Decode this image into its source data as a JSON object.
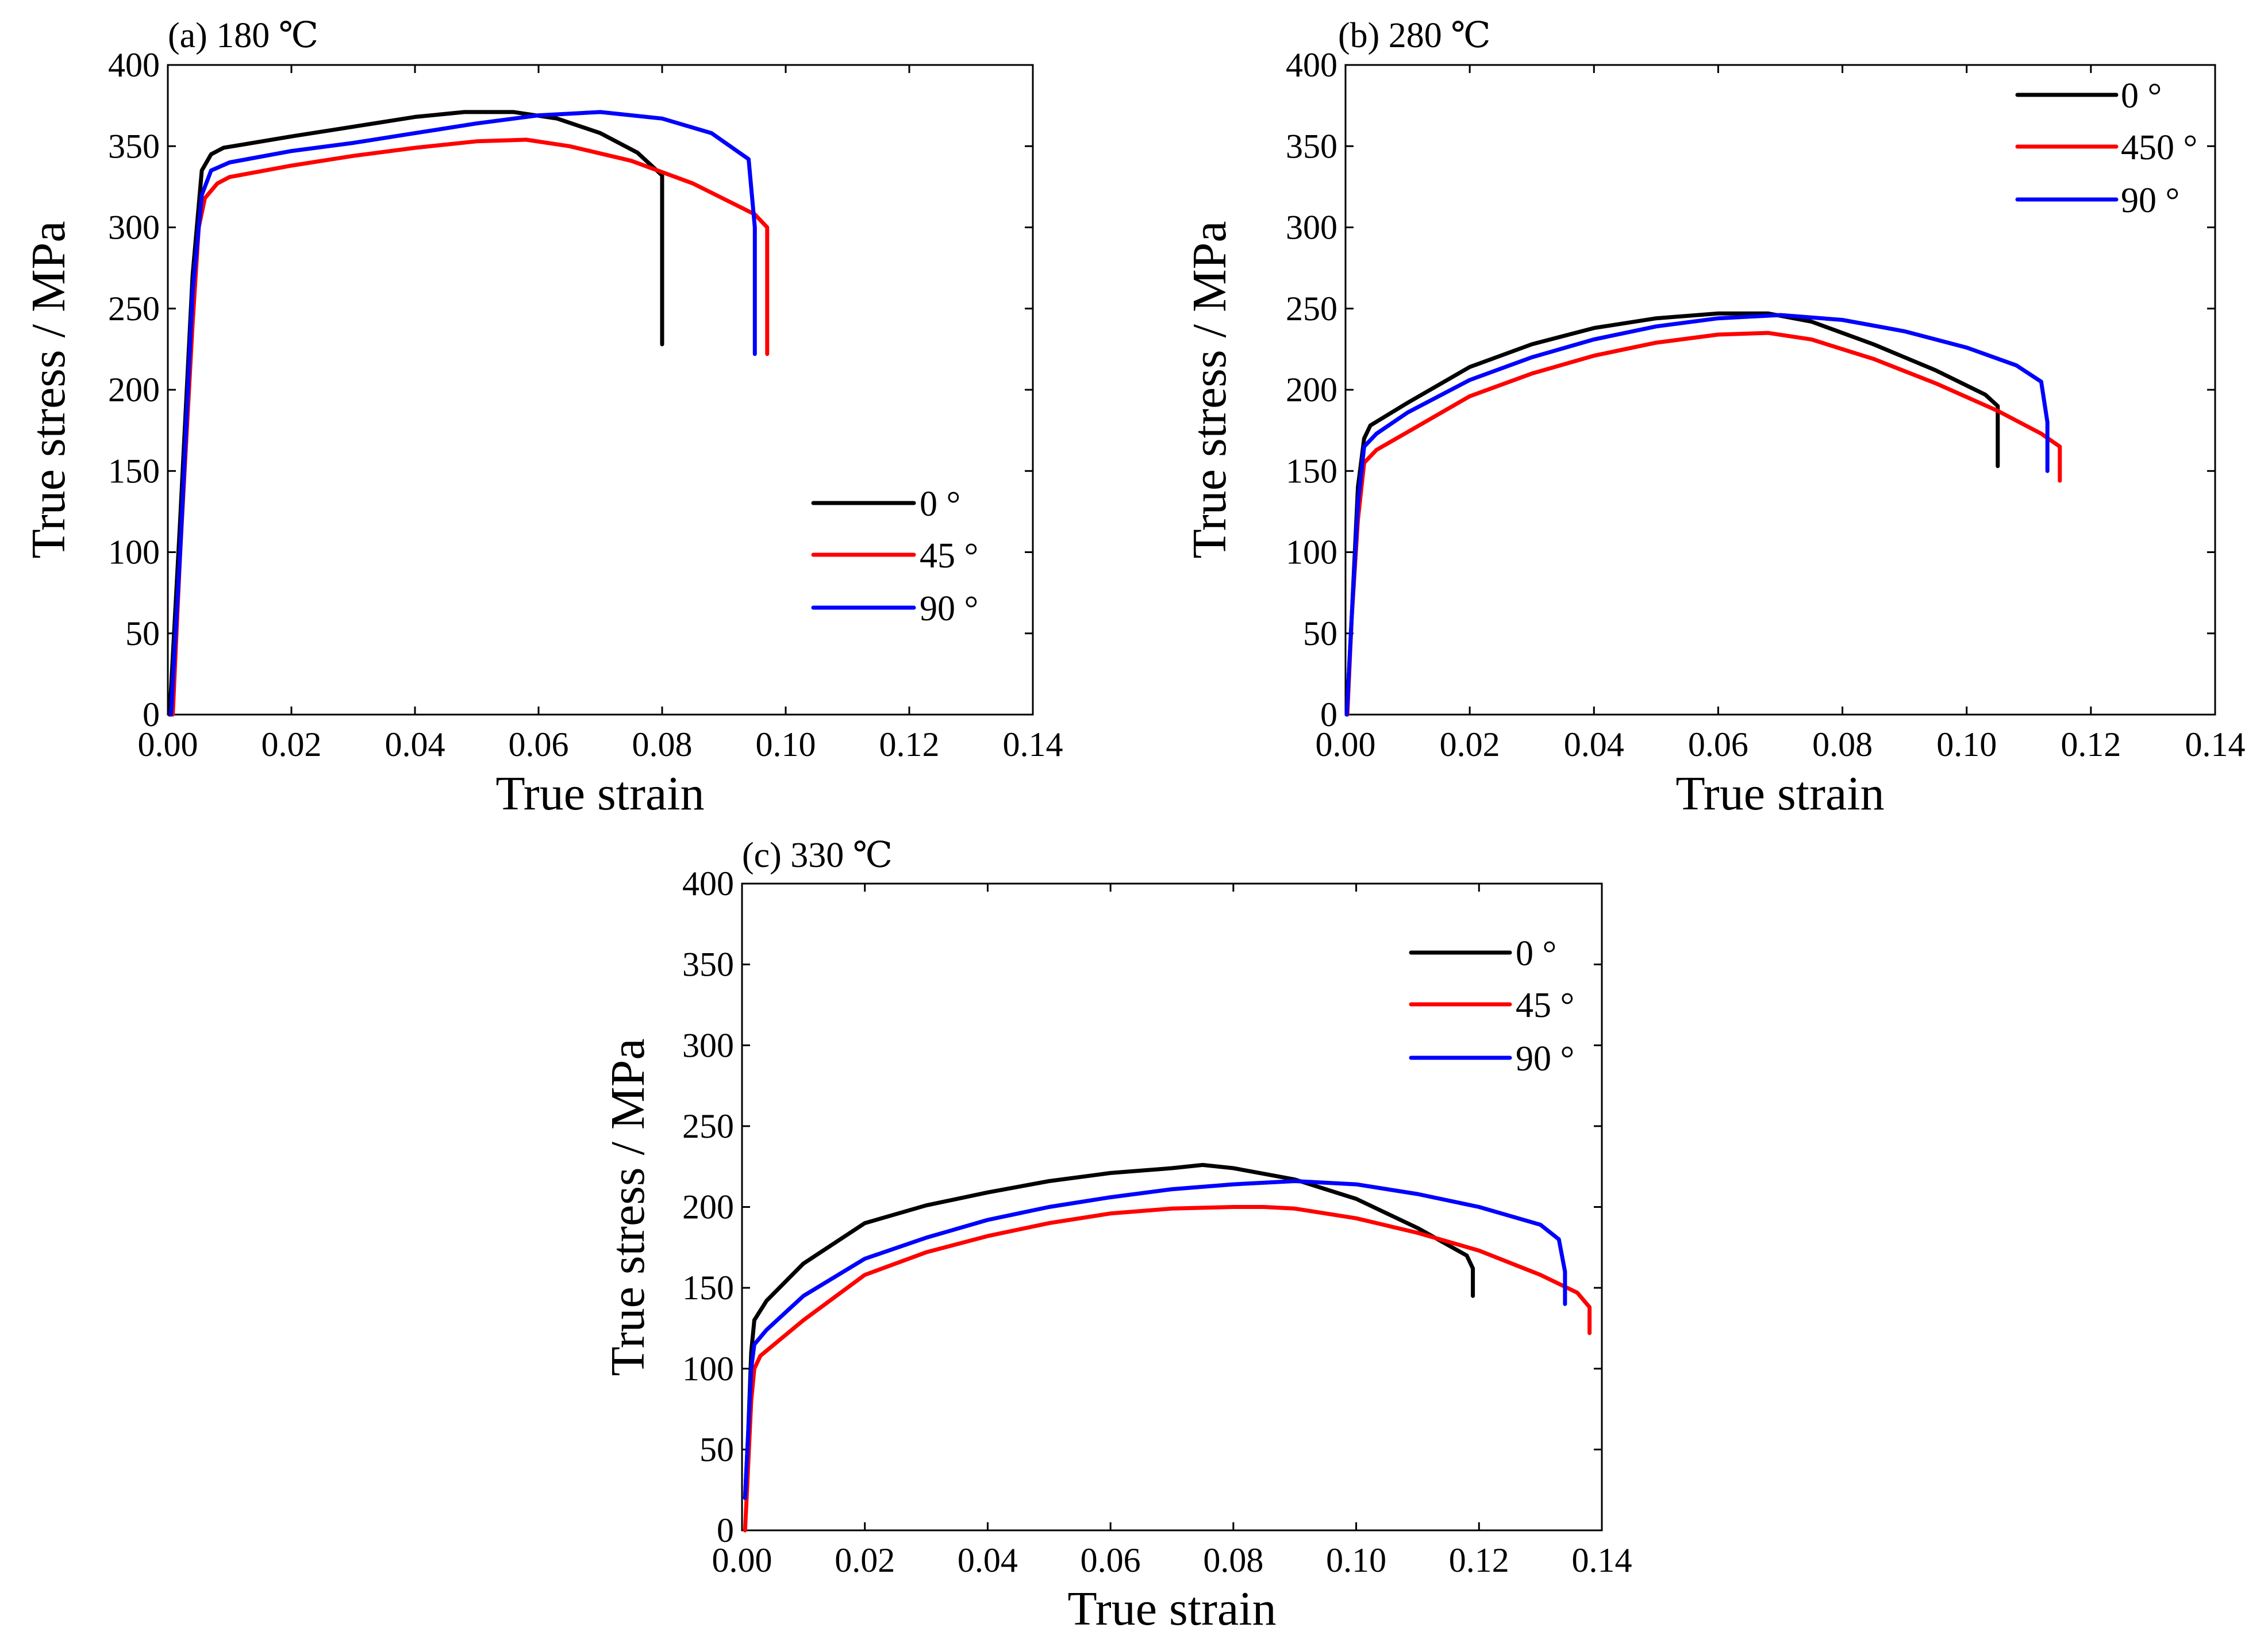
{
  "chart_data": [
    {
      "type": "line",
      "title": "(a) 180  ℃",
      "xlabel": "True strain",
      "ylabel": "True stress / MPa",
      "xlim": [
        0,
        0.14
      ],
      "ylim": [
        0,
        400
      ],
      "xticks": [
        "0.00",
        "0.02",
        "0.04",
        "0.06",
        "0.08",
        "0.10",
        "0.12",
        "0.14"
      ],
      "yticks": [
        "0",
        "50",
        "100",
        "150",
        "200",
        "250",
        "300",
        "350",
        "400"
      ],
      "legend_position": "center-right",
      "series": [
        {
          "name": "0 °",
          "color": "#000000",
          "points": [
            [
              0.0003,
              0
            ],
            [
              0.002,
              120
            ],
            [
              0.004,
              270
            ],
            [
              0.0055,
              335
            ],
            [
              0.007,
              345
            ],
            [
              0.009,
              349
            ],
            [
              0.02,
              356
            ],
            [
              0.03,
              362
            ],
            [
              0.04,
              368
            ],
            [
              0.048,
              371
            ],
            [
              0.056,
              371
            ],
            [
              0.063,
              367
            ],
            [
              0.07,
              358
            ],
            [
              0.076,
              346
            ],
            [
              0.08,
              332
            ],
            [
              0.08,
              228
            ]
          ]
        },
        {
          "name": "45 °",
          "color": "#ff0000",
          "points": [
            [
              0.0008,
              0
            ],
            [
              0.002,
              100
            ],
            [
              0.004,
              240
            ],
            [
              0.005,
              300
            ],
            [
              0.006,
              318
            ],
            [
              0.008,
              327
            ],
            [
              0.01,
              331
            ],
            [
              0.02,
              338
            ],
            [
              0.03,
              344
            ],
            [
              0.04,
              349
            ],
            [
              0.05,
              353
            ],
            [
              0.058,
              354
            ],
            [
              0.065,
              350
            ],
            [
              0.075,
              341
            ],
            [
              0.085,
              327
            ],
            [
              0.095,
              308
            ],
            [
              0.097,
              300
            ],
            [
              0.097,
              222
            ]
          ]
        },
        {
          "name": "90 °",
          "color": "#0000ff",
          "points": [
            [
              0.0005,
              0
            ],
            [
              0.002,
              100
            ],
            [
              0.004,
              260
            ],
            [
              0.0055,
              320
            ],
            [
              0.007,
              335
            ],
            [
              0.01,
              340
            ],
            [
              0.02,
              347
            ],
            [
              0.03,
              352
            ],
            [
              0.04,
              358
            ],
            [
              0.05,
              364
            ],
            [
              0.06,
              369
            ],
            [
              0.07,
              371
            ],
            [
              0.08,
              367
            ],
            [
              0.088,
              358
            ],
            [
              0.094,
              342
            ],
            [
              0.095,
              300
            ],
            [
              0.095,
              222
            ]
          ]
        }
      ]
    },
    {
      "type": "line",
      "title": "(b) 280 ℃",
      "xlabel": "True strain",
      "ylabel": "True stress / MPa",
      "xlim": [
        0,
        0.14
      ],
      "ylim": [
        0,
        400
      ],
      "xticks": [
        "0.00",
        "0.02",
        "0.04",
        "0.06",
        "0.08",
        "0.10",
        "0.12",
        "0.14"
      ],
      "yticks": [
        "0",
        "50",
        "100",
        "150",
        "200",
        "250",
        "300",
        "350",
        "400"
      ],
      "legend_position": "top-right",
      "series": [
        {
          "name": "0 °",
          "color": "#000000",
          "points": [
            [
              0.0002,
              0
            ],
            [
              0.001,
              60
            ],
            [
              0.002,
              140
            ],
            [
              0.003,
              170
            ],
            [
              0.004,
              178
            ],
            [
              0.01,
              192
            ],
            [
              0.02,
              214
            ],
            [
              0.03,
              228
            ],
            [
              0.04,
              238
            ],
            [
              0.05,
              244
            ],
            [
              0.06,
              247
            ],
            [
              0.068,
              247
            ],
            [
              0.075,
              242
            ],
            [
              0.085,
              228
            ],
            [
              0.095,
              212
            ],
            [
              0.103,
              197
            ],
            [
              0.105,
              190
            ],
            [
              0.105,
              153
            ]
          ]
        },
        {
          "name": "450 °",
          "color": "#ff0000",
          "points": [
            [
              0.0003,
              0
            ],
            [
              0.001,
              60
            ],
            [
              0.002,
              120
            ],
            [
              0.003,
              155
            ],
            [
              0.005,
              163
            ],
            [
              0.01,
              174
            ],
            [
              0.02,
              196
            ],
            [
              0.03,
              210
            ],
            [
              0.04,
              221
            ],
            [
              0.05,
              229
            ],
            [
              0.06,
              234
            ],
            [
              0.068,
              235
            ],
            [
              0.075,
              231
            ],
            [
              0.085,
              219
            ],
            [
              0.095,
              204
            ],
            [
              0.105,
              187
            ],
            [
              0.112,
              173
            ],
            [
              0.115,
              165
            ],
            [
              0.115,
              144
            ]
          ]
        },
        {
          "name": "90 °",
          "color": "#0000ff",
          "points": [
            [
              0.0002,
              0
            ],
            [
              0.001,
              60
            ],
            [
              0.002,
              130
            ],
            [
              0.003,
              165
            ],
            [
              0.005,
              173
            ],
            [
              0.01,
              186
            ],
            [
              0.02,
              206
            ],
            [
              0.03,
              220
            ],
            [
              0.04,
              231
            ],
            [
              0.05,
              239
            ],
            [
              0.06,
              244
            ],
            [
              0.07,
              246
            ],
            [
              0.08,
              243
            ],
            [
              0.09,
              236
            ],
            [
              0.1,
              226
            ],
            [
              0.108,
              215
            ],
            [
              0.112,
              205
            ],
            [
              0.113,
              180
            ],
            [
              0.113,
              150
            ]
          ]
        }
      ]
    },
    {
      "type": "line",
      "title": "(c) 330  ℃",
      "xlabel": "True strain",
      "ylabel": "True stress / MPa",
      "xlim": [
        0,
        0.14
      ],
      "ylim": [
        0,
        400
      ],
      "xticks": [
        "0.00",
        "0.02",
        "0.04",
        "0.06",
        "0.08",
        "0.10",
        "0.12",
        "0.14"
      ],
      "yticks": [
        "0",
        "50",
        "100",
        "150",
        "200",
        "250",
        "300",
        "350",
        "400"
      ],
      "legend_position": "top-right",
      "series": [
        {
          "name": "0 °",
          "color": "#000000",
          "points": [
            [
              0.0005,
              20
            ],
            [
              0.001,
              60
            ],
            [
              0.0015,
              110
            ],
            [
              0.002,
              130
            ],
            [
              0.004,
              142
            ],
            [
              0.01,
              165
            ],
            [
              0.02,
              190
            ],
            [
              0.03,
              201
            ],
            [
              0.04,
              209
            ],
            [
              0.05,
              216
            ],
            [
              0.06,
              221
            ],
            [
              0.07,
              224
            ],
            [
              0.075,
              226
            ],
            [
              0.08,
              224
            ],
            [
              0.09,
              217
            ],
            [
              0.1,
              205
            ],
            [
              0.11,
              187
            ],
            [
              0.118,
              170
            ],
            [
              0.119,
              162
            ],
            [
              0.119,
              145
            ]
          ]
        },
        {
          "name": "45 °",
          "color": "#ff0000",
          "points": [
            [
              0.0005,
              0
            ],
            [
              0.001,
              40
            ],
            [
              0.0015,
              80
            ],
            [
              0.002,
              100
            ],
            [
              0.003,
              108
            ],
            [
              0.01,
              130
            ],
            [
              0.02,
              158
            ],
            [
              0.03,
              172
            ],
            [
              0.04,
              182
            ],
            [
              0.05,
              190
            ],
            [
              0.06,
              196
            ],
            [
              0.07,
              199
            ],
            [
              0.08,
              200
            ],
            [
              0.085,
              200
            ],
            [
              0.09,
              199
            ],
            [
              0.1,
              193
            ],
            [
              0.11,
              184
            ],
            [
              0.12,
              173
            ],
            [
              0.13,
              158
            ],
            [
              0.136,
              147
            ],
            [
              0.138,
              138
            ],
            [
              0.138,
              122
            ]
          ]
        },
        {
          "name": "90 °",
          "color": "#0000ff",
          "points": [
            [
              0.0005,
              20
            ],
            [
              0.001,
              60
            ],
            [
              0.0015,
              100
            ],
            [
              0.002,
              115
            ],
            [
              0.004,
              124
            ],
            [
              0.01,
              145
            ],
            [
              0.02,
              168
            ],
            [
              0.03,
              181
            ],
            [
              0.04,
              192
            ],
            [
              0.05,
              200
            ],
            [
              0.06,
              206
            ],
            [
              0.07,
              211
            ],
            [
              0.08,
              214
            ],
            [
              0.09,
              216
            ],
            [
              0.1,
              214
            ],
            [
              0.11,
              208
            ],
            [
              0.12,
              200
            ],
            [
              0.13,
              189
            ],
            [
              0.133,
              180
            ],
            [
              0.134,
              160
            ],
            [
              0.134,
              140
            ]
          ]
        }
      ]
    }
  ]
}
